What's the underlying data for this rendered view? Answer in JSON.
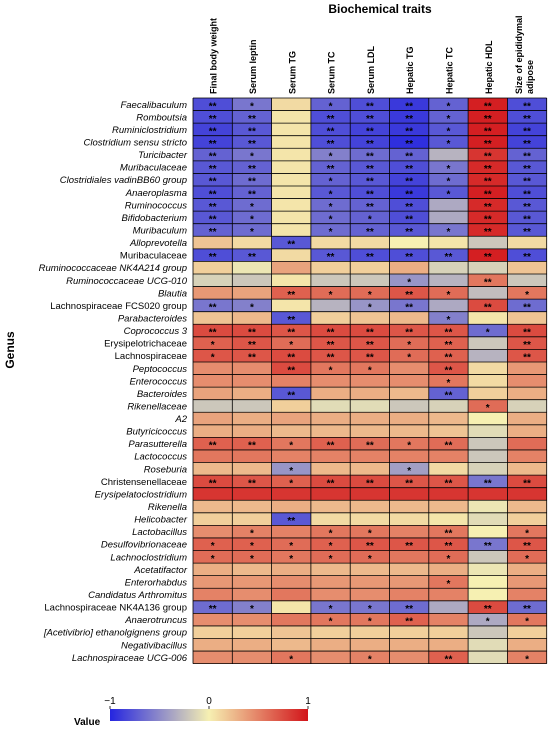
{
  "chart_data": {
    "type": "heatmap",
    "title": "Biochemical traits",
    "ylabel": "Genus",
    "legend_title": "Value",
    "scale_ticks": [
      "−1",
      "0",
      "1"
    ],
    "value_range": [
      -1,
      1
    ],
    "colorscale": [
      "#2525e0",
      "#f6f0b2",
      "#d2141a"
    ],
    "columns": [
      "Final body weight",
      "Serum leptin",
      "Serum TG",
      "Serum TC",
      "Serum LDL",
      "Hepatic TG",
      "Hepatic TC",
      "Hepatic HDL",
      "Size of epididymal adipose"
    ],
    "rows": [
      {
        "name": "Faecalibaculum",
        "italic": true,
        "values": [
          -0.8,
          -0.6,
          0.1,
          -0.7,
          -0.8,
          -0.9,
          -0.7,
          0.95,
          -0.8
        ],
        "sig": [
          "**",
          "*",
          "",
          "*",
          "**",
          "**",
          "*",
          "**",
          "**"
        ]
      },
      {
        "name": "Romboutsia",
        "italic": true,
        "values": [
          -0.8,
          -0.7,
          0.05,
          -0.8,
          -0.8,
          -0.9,
          -0.7,
          0.95,
          -0.8
        ],
        "sig": [
          "**",
          "**",
          "",
          "**",
          "**",
          "**",
          "*",
          "**",
          "**"
        ]
      },
      {
        "name": "Ruminiclostridium",
        "italic": true,
        "values": [
          -0.85,
          -0.75,
          0.05,
          -0.8,
          -0.85,
          -0.9,
          -0.75,
          0.95,
          -0.85
        ],
        "sig": [
          "**",
          "**",
          "",
          "**",
          "**",
          "**",
          "*",
          "**",
          "**"
        ]
      },
      {
        "name": "Clostridium sensu stricto",
        "italic": true,
        "values": [
          -0.85,
          -0.75,
          0.05,
          -0.8,
          -0.85,
          -0.95,
          -0.75,
          0.95,
          -0.85
        ],
        "sig": [
          "**",
          "**",
          "",
          "**",
          "**",
          "**",
          "*",
          "**",
          "**"
        ]
      },
      {
        "name": "Turicibacter",
        "italic": true,
        "values": [
          -0.7,
          -0.6,
          0.05,
          -0.55,
          -0.65,
          -0.7,
          -0.3,
          0.85,
          -0.7
        ],
        "sig": [
          "**",
          "*",
          "",
          "*",
          "**",
          "**",
          "",
          "**",
          "**"
        ]
      },
      {
        "name": "Muribaculaceae",
        "italic": true,
        "values": [
          -0.75,
          -0.7,
          0.05,
          -0.7,
          -0.75,
          -0.8,
          -0.6,
          0.9,
          -0.75
        ],
        "sig": [
          "**",
          "**",
          "",
          "**",
          "**",
          "**",
          "*",
          "**",
          "**"
        ]
      },
      {
        "name": "Clostridiales vadinBB60 group",
        "italic": true,
        "values": [
          -0.75,
          -0.65,
          0.05,
          -0.7,
          -0.75,
          -0.85,
          -0.65,
          0.9,
          -0.75
        ],
        "sig": [
          "**",
          "**",
          "",
          "*",
          "**",
          "**",
          "*",
          "**",
          "**"
        ]
      },
      {
        "name": "Anaeroplasma",
        "italic": true,
        "values": [
          -0.8,
          -0.7,
          0.05,
          -0.75,
          -0.8,
          -0.9,
          -0.75,
          0.95,
          -0.8
        ],
        "sig": [
          "**",
          "**",
          "",
          "*",
          "**",
          "**",
          "*",
          "**",
          "**"
        ]
      },
      {
        "name": "Ruminococcus",
        "italic": true,
        "values": [
          -0.75,
          -0.65,
          0.05,
          -0.65,
          -0.7,
          -0.8,
          -0.35,
          0.9,
          -0.75
        ],
        "sig": [
          "**",
          "*",
          "",
          "*",
          "**",
          "**",
          "",
          "**",
          "**"
        ]
      },
      {
        "name": "Bifidobacterium",
        "italic": true,
        "values": [
          -0.75,
          -0.65,
          0.05,
          -0.65,
          -0.7,
          -0.8,
          -0.35,
          0.9,
          -0.75
        ],
        "sig": [
          "**",
          "*",
          "",
          "*",
          "*",
          "**",
          "",
          "**",
          "**"
        ]
      },
      {
        "name": "Muribaculum",
        "italic": true,
        "values": [
          -0.7,
          -0.65,
          0.05,
          -0.65,
          -0.7,
          -0.75,
          -0.6,
          0.9,
          -0.75
        ],
        "sig": [
          "**",
          "*",
          "",
          "*",
          "**",
          "**",
          "*",
          "**",
          "**"
        ]
      },
      {
        "name": "Alloprevotella",
        "italic": true,
        "values": [
          0.2,
          0.1,
          -0.75,
          0.1,
          0.1,
          0.0,
          0.05,
          -0.2,
          0.1
        ],
        "sig": [
          "",
          "",
          "**",
          "",
          "",
          "",
          "",
          "",
          ""
        ]
      },
      {
        "name": "Muribaculaceae",
        "italic": false,
        "values": [
          -0.8,
          -0.75,
          0.1,
          -0.75,
          -0.8,
          -0.8,
          -0.75,
          0.95,
          -0.8
        ],
        "sig": [
          "**",
          "**",
          "",
          "**",
          "**",
          "**",
          "**",
          "**",
          "**"
        ]
      },
      {
        "name": "Ruminococcaceae NK4A214 group",
        "italic": true,
        "values": [
          0.15,
          -0.05,
          0.35,
          0.15,
          0.15,
          0.3,
          -0.15,
          -0.15,
          0.2
        ],
        "sig": [
          "",
          "",
          "",
          "",
          "",
          "",
          "",
          "",
          ""
        ]
      },
      {
        "name": "Ruminococcaceae UCG-010",
        "italic": true,
        "values": [
          -0.15,
          -0.2,
          0.05,
          -0.2,
          -0.2,
          -0.45,
          -0.3,
          0.55,
          -0.2
        ],
        "sig": [
          "",
          "",
          "",
          "",
          "",
          "*",
          "",
          "**",
          ""
        ]
      },
      {
        "name": "Blautia",
        "italic": true,
        "values": [
          0.4,
          0.35,
          0.65,
          0.6,
          0.6,
          0.7,
          0.6,
          -0.25,
          0.55
        ],
        "sig": [
          "",
          "",
          "**",
          "*",
          "*",
          "**",
          "*",
          "",
          "*"
        ]
      },
      {
        "name": "Lachnospiraceae FCS020 group",
        "italic": false,
        "values": [
          -0.6,
          -0.55,
          0.05,
          -0.3,
          -0.45,
          -0.6,
          -0.35,
          0.75,
          -0.65
        ],
        "sig": [
          "**",
          "*",
          "",
          "",
          "*",
          "**",
          "",
          "**",
          "**"
        ]
      },
      {
        "name": "Parabacteroides",
        "italic": true,
        "values": [
          0.2,
          0.25,
          -0.75,
          0.15,
          0.2,
          0.25,
          -0.55,
          0.05,
          0.2
        ],
        "sig": [
          "",
          "",
          "**",
          "",
          "",
          "",
          "*",
          "",
          ""
        ]
      },
      {
        "name": "Coprococcus 3",
        "italic": true,
        "values": [
          0.75,
          0.75,
          0.7,
          0.75,
          0.75,
          0.7,
          0.7,
          -0.65,
          0.75
        ],
        "sig": [
          "**",
          "**",
          "**",
          "**",
          "**",
          "**",
          "**",
          "*",
          "**"
        ]
      },
      {
        "name": "Erysipelotrichaceae",
        "italic": false,
        "values": [
          0.65,
          0.7,
          0.6,
          0.7,
          0.7,
          0.6,
          0.65,
          -0.2,
          0.7
        ],
        "sig": [
          "*",
          "**",
          "*",
          "**",
          "**",
          "*",
          "**",
          "",
          "**"
        ]
      },
      {
        "name": "Lachnospiraceae",
        "italic": false,
        "values": [
          0.7,
          0.7,
          0.75,
          0.7,
          0.7,
          0.6,
          0.65,
          -0.3,
          0.7
        ],
        "sig": [
          "*",
          "**",
          "**",
          "**",
          "**",
          "*",
          "**",
          "",
          "**"
        ]
      },
      {
        "name": "Peptococcus",
        "italic": true,
        "values": [
          0.45,
          0.45,
          0.75,
          0.55,
          0.55,
          0.45,
          0.7,
          0.1,
          0.4
        ],
        "sig": [
          "",
          "",
          "**",
          "*",
          "*",
          "",
          "**",
          "",
          ""
        ]
      },
      {
        "name": "Enterococcus",
        "italic": true,
        "values": [
          0.45,
          0.45,
          0.5,
          0.45,
          0.45,
          0.45,
          0.55,
          0.1,
          0.45
        ],
        "sig": [
          "",
          "",
          "",
          "",
          "",
          "",
          "*",
          "",
          ""
        ]
      },
      {
        "name": "Bacteroides",
        "italic": true,
        "values": [
          0.35,
          0.3,
          -0.75,
          0.3,
          0.3,
          0.25,
          -0.7,
          0.15,
          0.3
        ],
        "sig": [
          "",
          "",
          "**",
          "",
          "",
          "",
          "**",
          "",
          ""
        ]
      },
      {
        "name": "Rikenellaceae",
        "italic": true,
        "values": [
          -0.2,
          -0.2,
          0.15,
          -0.1,
          -0.1,
          -0.2,
          -0.15,
          0.6,
          -0.15
        ],
        "sig": [
          "",
          "",
          "",
          "",
          "",
          "",
          "",
          "*",
          ""
        ]
      },
      {
        "name": "A2",
        "italic": true,
        "values": [
          0.35,
          0.3,
          0.35,
          0.3,
          0.3,
          0.3,
          0.25,
          0.0,
          0.3
        ],
        "sig": [
          "",
          "",
          "",
          "",
          "",
          "",
          "",
          "",
          ""
        ]
      },
      {
        "name": "Butyricicoccus",
        "italic": true,
        "values": [
          0.3,
          0.3,
          0.25,
          0.25,
          0.25,
          0.25,
          0.2,
          -0.1,
          0.3
        ],
        "sig": [
          "",
          "",
          "",
          "",
          "",
          "",
          "",
          "",
          ""
        ]
      },
      {
        "name": "Parasutterella",
        "italic": true,
        "values": [
          0.65,
          0.65,
          0.55,
          0.65,
          0.6,
          0.55,
          0.6,
          -0.2,
          0.6
        ],
        "sig": [
          "**",
          "**",
          "*",
          "**",
          "**",
          "*",
          "**",
          "",
          ""
        ]
      },
      {
        "name": "Lactococcus",
        "italic": true,
        "values": [
          0.55,
          0.55,
          0.5,
          0.5,
          0.5,
          0.5,
          0.5,
          -0.2,
          0.5
        ],
        "sig": [
          "",
          "",
          "",
          "",
          "",
          "",
          "",
          "",
          ""
        ]
      },
      {
        "name": "Roseburia",
        "italic": true,
        "values": [
          0.25,
          0.25,
          -0.45,
          0.25,
          0.25,
          -0.4,
          0.1,
          -0.15,
          0.25
        ],
        "sig": [
          "",
          "",
          "*",
          "",
          "",
          "*",
          "",
          "",
          ""
        ]
      },
      {
        "name": "Christensenellaceae",
        "italic": false,
        "values": [
          0.75,
          0.7,
          0.65,
          0.75,
          0.75,
          0.7,
          0.7,
          -0.6,
          0.75
        ],
        "sig": [
          "**",
          "**",
          "*",
          "**",
          "**",
          "**",
          "**",
          "**",
          "**"
        ]
      },
      {
        "name": "Erysipelatoclostridium",
        "italic": true,
        "values": [
          0.85,
          0.85,
          0.85,
          0.85,
          0.85,
          0.85,
          0.85,
          0.85,
          0.85
        ],
        "sig": [
          "",
          "",
          "",
          "",
          "",
          "",
          "",
          "",
          ""
        ]
      },
      {
        "name": "Rikenella",
        "italic": true,
        "values": [
          0.25,
          0.25,
          0.3,
          0.25,
          0.25,
          0.25,
          0.25,
          -0.05,
          0.25
        ],
        "sig": [
          "",
          "",
          "",
          "",
          "",
          "",
          "",
          "",
          ""
        ]
      },
      {
        "name": "Helicobacter",
        "italic": true,
        "values": [
          0.15,
          0.15,
          -0.75,
          0.1,
          0.1,
          0.1,
          0.05,
          -0.1,
          0.15
        ],
        "sig": [
          "",
          "",
          "**",
          "",
          "",
          "",
          "",
          "",
          ""
        ]
      },
      {
        "name": "Lactobacillus",
        "italic": true,
        "values": [
          0.45,
          0.5,
          0.5,
          0.55,
          0.55,
          0.5,
          0.55,
          0.0,
          0.55
        ],
        "sig": [
          "",
          "*",
          "",
          "*",
          "*",
          "",
          "**",
          "",
          "*"
        ]
      },
      {
        "name": "Desulfovibrionaceae",
        "italic": true,
        "values": [
          0.65,
          0.65,
          0.6,
          0.65,
          0.7,
          0.7,
          0.7,
          -0.6,
          0.7
        ],
        "sig": [
          "*",
          "*",
          "*",
          "*",
          "**",
          "**",
          "**",
          "**",
          "**"
        ]
      },
      {
        "name": "Lachnoclostridium",
        "italic": true,
        "values": [
          0.6,
          0.6,
          0.55,
          0.6,
          0.6,
          0.55,
          0.6,
          -0.2,
          0.6
        ],
        "sig": [
          "*",
          "*",
          "*",
          "*",
          "*",
          "",
          "*",
          "",
          "*"
        ]
      },
      {
        "name": "Acetatifactor",
        "italic": true,
        "values": [
          0.3,
          0.25,
          0.3,
          0.25,
          0.25,
          0.25,
          0.3,
          -0.05,
          0.3
        ],
        "sig": [
          "",
          "",
          "",
          "",
          "",
          "",
          "",
          "",
          ""
        ]
      },
      {
        "name": "Enterorhabdus",
        "italic": true,
        "values": [
          0.4,
          0.4,
          0.45,
          0.4,
          0.4,
          0.4,
          0.55,
          0.0,
          0.4
        ],
        "sig": [
          "",
          "",
          "",
          "",
          "",
          "",
          "*",
          "",
          ""
        ]
      },
      {
        "name": "Candidatus Arthromitus",
        "italic": true,
        "values": [
          0.5,
          0.45,
          0.55,
          0.45,
          0.45,
          0.5,
          0.5,
          0.0,
          0.5
        ],
        "sig": [
          "",
          "",
          "",
          "",
          "",
          "",
          "",
          "",
          ""
        ]
      },
      {
        "name": "Lachnospiraceae NK4A136 group",
        "italic": false,
        "values": [
          -0.65,
          -0.55,
          0.05,
          -0.6,
          -0.6,
          -0.65,
          -0.35,
          0.75,
          -0.65
        ],
        "sig": [
          "**",
          "*",
          "",
          "*",
          "*",
          "**",
          "",
          "**",
          "**"
        ]
      },
      {
        "name": "Anaerotruncus",
        "italic": true,
        "values": [
          0.45,
          0.45,
          0.55,
          0.55,
          0.55,
          0.65,
          0.5,
          -0.35,
          0.55
        ],
        "sig": [
          "",
          "",
          "",
          "*",
          "*",
          "**",
          "",
          "*",
          "*"
        ]
      },
      {
        "name": "[Acetivibrio] ethanolgignens group",
        "italic": true,
        "values": [
          0.15,
          0.15,
          0.2,
          0.15,
          0.15,
          0.15,
          0.15,
          -0.2,
          0.15
        ],
        "sig": [
          "",
          "",
          "",
          "",
          "",
          "",
          "",
          "",
          ""
        ]
      },
      {
        "name": "Negativibacillus",
        "italic": true,
        "values": [
          0.3,
          0.3,
          0.25,
          0.3,
          0.3,
          0.3,
          0.3,
          -0.1,
          0.3
        ],
        "sig": [
          "",
          "",
          "",
          "",
          "",
          "",
          "",
          "",
          ""
        ]
      },
      {
        "name": "Lachnospiraceae UCG-006",
        "italic": true,
        "values": [
          0.45,
          0.45,
          0.55,
          0.45,
          0.5,
          0.45,
          0.65,
          -0.1,
          0.5
        ],
        "sig": [
          "",
          "",
          "*",
          "",
          "*",
          "",
          "**",
          "",
          "*"
        ]
      }
    ]
  }
}
